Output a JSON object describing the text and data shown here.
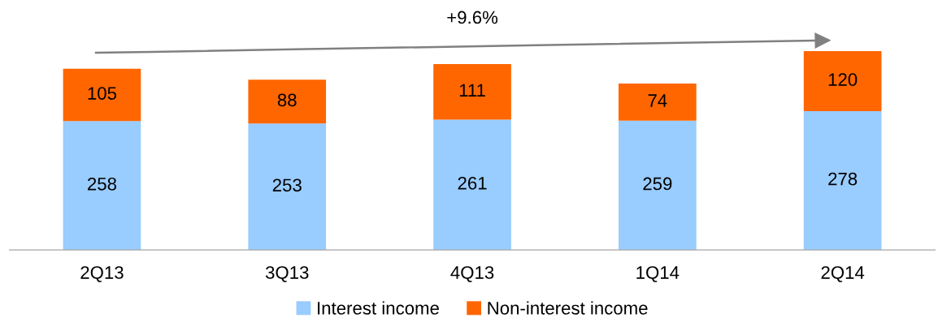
{
  "chart_data": {
    "type": "bar",
    "stacked": true,
    "data_labels": true,
    "legend": "bottom",
    "grid": false,
    "categories": [
      "2Q13",
      "3Q13",
      "4Q13",
      "1Q14",
      "2Q14"
    ],
    "series": [
      {
        "name": "Interest income",
        "color": "#99ccff",
        "values": [
          258,
          253,
          261,
          259,
          278
        ]
      },
      {
        "name": "Non-interest income",
        "color": "#ff6600",
        "values": [
          105,
          88,
          111,
          74,
          120
        ]
      }
    ],
    "annotations": [
      "+9.6%"
    ]
  }
}
